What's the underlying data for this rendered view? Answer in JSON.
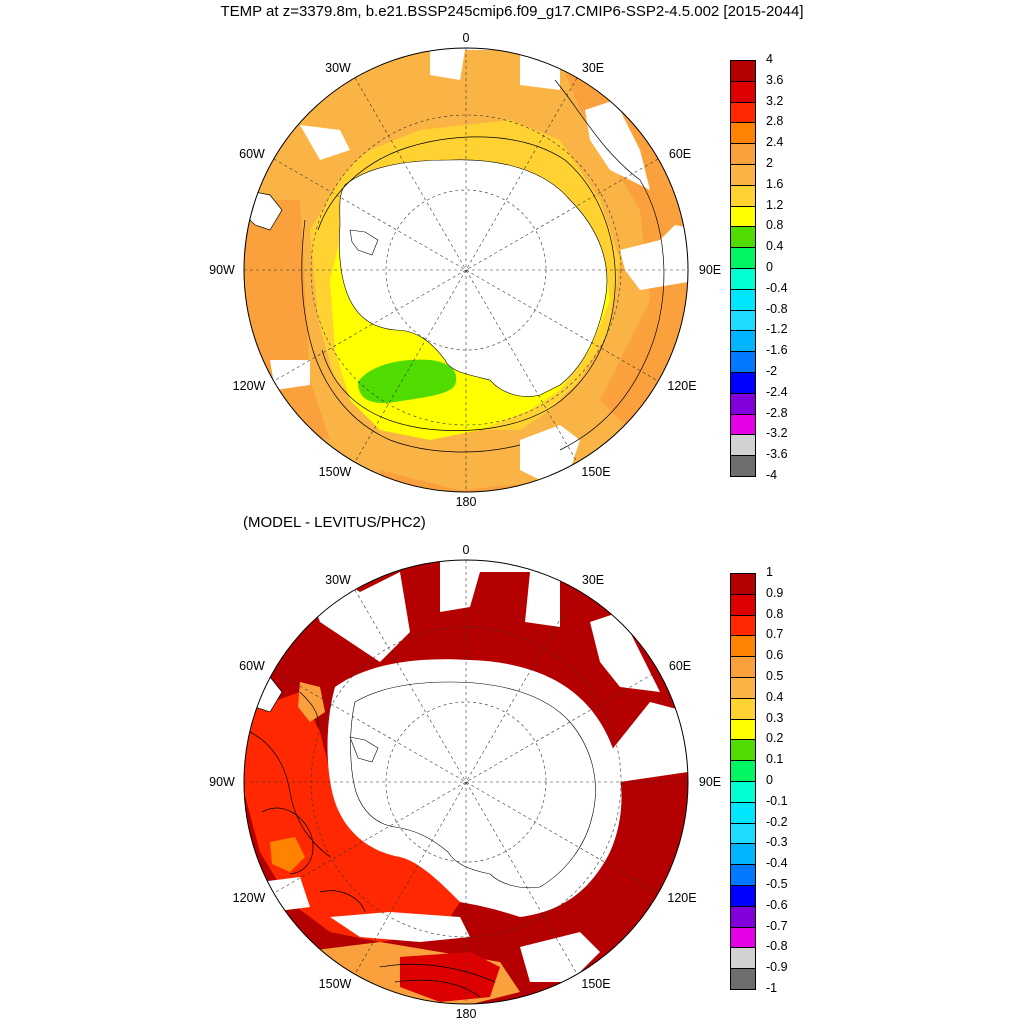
{
  "title": "TEMP at z=3379.8m, b.e21.BSSP245cmip6.f09_g17.CMIP6-SSP2-4.5.002 [2015-2044]",
  "subtitle": "(MODEL - LEVITUS/PHC2)",
  "lon_labels": [
    "0",
    "30E",
    "60E",
    "90E",
    "120E",
    "150E",
    "180",
    "150W",
    "120W",
    "90W",
    "60W",
    "30W"
  ],
  "top_colorbar": {
    "labels": [
      "4",
      "3.6",
      "3.2",
      "2.8",
      "2.4",
      "2",
      "1.6",
      "1.2",
      "0.8",
      "0.4",
      "0",
      "-0.4",
      "-0.8",
      "-1.2",
      "-1.6",
      "-2",
      "-2.4",
      "-2.8",
      "-3.2",
      "-3.6",
      "-4"
    ],
    "colors": [
      "#b40000",
      "#dc0000",
      "#ff2800",
      "#ff8200",
      "#faa03c",
      "#fab446",
      "#ffd232",
      "#ffff00",
      "#50dc00",
      "#00f564",
      "#00ffd2",
      "#00e6ff",
      "#1edcff",
      "#00b4ff",
      "#0078ff",
      "#0000ff",
      "#8200dc",
      "#e600e6",
      "#d2d2d2",
      "#6e6e6e"
    ]
  },
  "bottom_colorbar": {
    "labels": [
      "1",
      "0.9",
      "0.8",
      "0.7",
      "0.6",
      "0.5",
      "0.4",
      "0.3",
      "0.2",
      "0.1",
      "0",
      "-0.1",
      "-0.2",
      "-0.3",
      "-0.4",
      "-0.5",
      "-0.6",
      "-0.7",
      "-0.8",
      "-0.9",
      "-1"
    ],
    "colors": [
      "#b40000",
      "#dc0000",
      "#ff2800",
      "#ff8200",
      "#faa03c",
      "#fab446",
      "#ffd232",
      "#ffff00",
      "#50dc00",
      "#00f564",
      "#00ffd2",
      "#00e6ff",
      "#1edcff",
      "#00b4ff",
      "#0078ff",
      "#0000ff",
      "#8200dc",
      "#e600e6",
      "#d2d2d2",
      "#6e6e6e"
    ]
  }
}
